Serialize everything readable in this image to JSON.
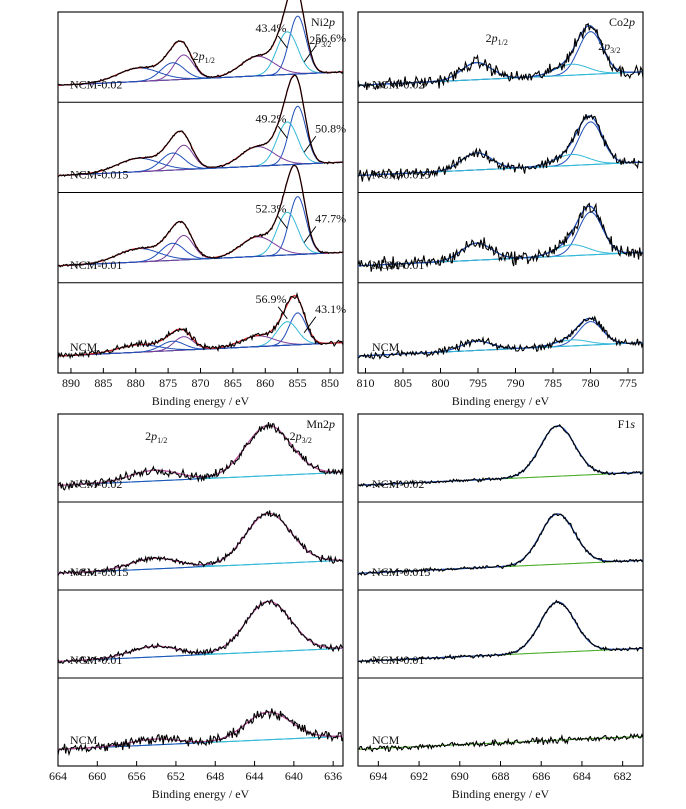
{
  "chart_data": [
    {
      "type": "line",
      "element": "Ni2p",
      "title_main": "Ni2",
      "title_orbital": "p",
      "xlabel": "Binding energy / eV",
      "xlim": [
        892,
        848
      ],
      "xticks": [
        890,
        885,
        880,
        875,
        870,
        865,
        860,
        855,
        850
      ],
      "peaks": [
        {
          "label_main": "2p",
          "label_sub": "3/2",
          "x": 855
        },
        {
          "label_main": "2p",
          "label_sub": "1/2",
          "x": 872.5
        }
      ],
      "panels": [
        {
          "sample": "NCM-0.02",
          "annotations": [
            "43.4%",
            "56.6%"
          ]
        },
        {
          "sample": "NCM-0.015",
          "annotations": [
            "49.2%",
            "50.8%"
          ]
        },
        {
          "sample": "NCM-0.01",
          "annotations": [
            "52.3%",
            "47.7%"
          ]
        },
        {
          "sample": "NCM",
          "annotations": [
            "56.9%",
            "43.1%"
          ]
        }
      ]
    },
    {
      "type": "line",
      "element": "Co2p",
      "title_main": "Co2",
      "title_orbital": "p",
      "xlabel": "Binding energy / eV",
      "xlim": [
        811,
        773
      ],
      "xticks": [
        810,
        805,
        800,
        795,
        790,
        785,
        780,
        775
      ],
      "peaks": [
        {
          "label_main": "2p",
          "label_sub": "1/2",
          "x": 795
        },
        {
          "label_main": "2p",
          "label_sub": "3/2",
          "x": 780
        }
      ],
      "panels": [
        {
          "sample": "NCM-0.02"
        },
        {
          "sample": "NCM-0.015"
        },
        {
          "sample": "NCM-0.01"
        },
        {
          "sample": "NCM"
        }
      ]
    },
    {
      "type": "line",
      "element": "Mn2p",
      "title_main": "Mn2",
      "title_orbital": "p",
      "xlabel": "Binding energy / eV",
      "xlim": [
        664,
        635
      ],
      "xticks": [
        664,
        660,
        656,
        652,
        648,
        644,
        640,
        636
      ],
      "peaks": [
        {
          "label_main": "2p",
          "label_sub": "1/2",
          "x": 654
        },
        {
          "label_main": "2p",
          "label_sub": "3/2",
          "x": 642.5
        }
      ],
      "panels": [
        {
          "sample": "NCM-0.02"
        },
        {
          "sample": "NCM-0.015"
        },
        {
          "sample": "NCM-0.01"
        },
        {
          "sample": "NCM"
        }
      ]
    },
    {
      "type": "line",
      "element": "F1s",
      "title_main": "F1",
      "title_orbital": "s",
      "xlabel": "Binding energy / eV",
      "xlim": [
        695,
        681
      ],
      "xticks": [
        694,
        692,
        690,
        688,
        686,
        684,
        682
      ],
      "peaks": [
        {
          "label_main": "",
          "label_sub": "",
          "x": 685.2
        }
      ],
      "panels": [
        {
          "sample": "NCM-0.02"
        },
        {
          "sample": "NCM-0.015"
        },
        {
          "sample": "NCM-0.01"
        },
        {
          "sample": "NCM"
        }
      ]
    }
  ],
  "colors": {
    "raw": "#000000",
    "envelope": "#d42020",
    "fit_blue": "#1f4fb8",
    "fit_cyan": "#35b9d8",
    "fit_purple": "#7a3e9d",
    "fit_pink": "#c0509a",
    "baseline_olive": "#8a8a2a",
    "baseline_green": "#4caf2a",
    "baseline_navy": "#2a3f8f"
  }
}
